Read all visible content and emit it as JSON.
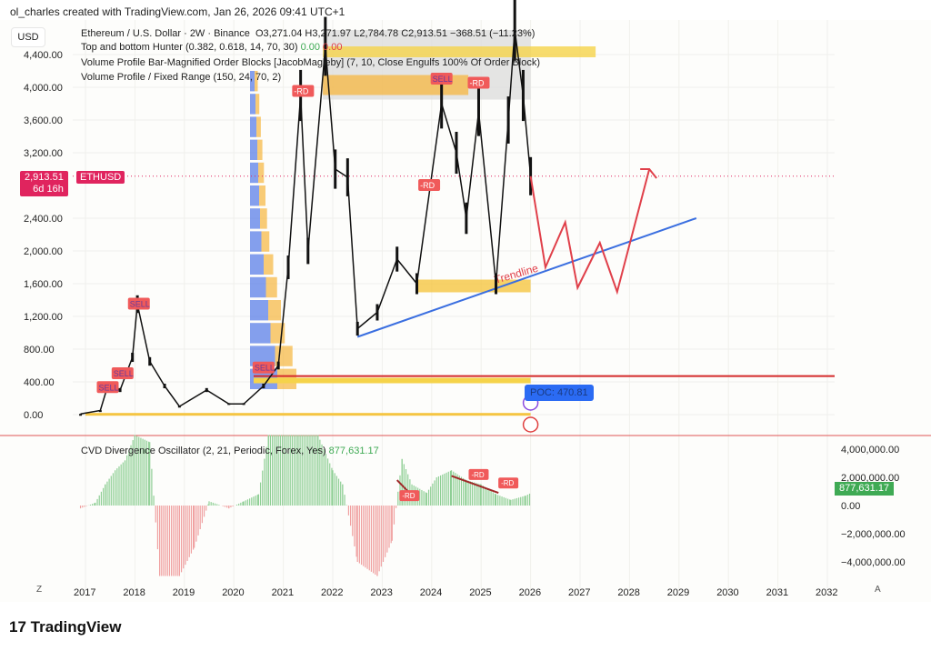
{
  "credit": "ol_charles created with TradingView.com, Jan 26, 2026 09:41 UTC+1",
  "currency": "USD",
  "legend": {
    "symbol": "Ethereum / U.S. Dollar · 2W · Binance",
    "ohlc": "O3,271.04  H3,271.97  L2,784.78  C2,913.51  −368.51 (−11.23%)",
    "ind1": "Top and bottom Hunter (0.382, 0.618, 14, 70, 30)",
    "ind1_v1": "0.00",
    "ind1_v2": "0.00",
    "ind2": "Volume Profile Bar-Magnified Order Blocks [JacobMagleby] (7, 10, Close Engulfs 100% Of Order Block)",
    "ind3": "Volume Profile / Fixed Range (150, 24, 70, 2)"
  },
  "price_tag": {
    "price": "2,913.51",
    "countdown": "6d 16h",
    "symbol": "ETHUSD"
  },
  "poc_label": "POC: 470.81",
  "trendline_label": "Trendline",
  "markers": {
    "sell": "SELL",
    "rd": "-RD"
  },
  "cvd": {
    "title": "CVD Divergence Oscillator (2, 21, Periodic, Forex, Yes)",
    "value": "877,631.17"
  },
  "bottom": {
    "left_btn": "Z",
    "right_btn": "A"
  },
  "logo": "TradingView",
  "colors": {
    "up": "#111111",
    "accent": "#e0245e",
    "trend": "#3b6fe0",
    "projection": "#e0404a",
    "cvd_pos": "#8fcf95",
    "cvd_neg": "#f0a0a0"
  },
  "chart_data": {
    "type": "line",
    "title": "Ethereum / U.S. Dollar · 2W · Binance",
    "x_ticks": [
      "2017",
      "2018",
      "2019",
      "2020",
      "2021",
      "2022",
      "2023",
      "2024",
      "2025",
      "2026",
      "2027",
      "2028",
      "2029",
      "2030",
      "2031",
      "2032"
    ],
    "y_ticks": [
      "0.00",
      "400.00",
      "800.00",
      "1,200.00",
      "1,600.00",
      "2,000.00",
      "2,400.00",
      "3,200.00",
      "3,600.00",
      "4,000.00",
      "4,400.00"
    ],
    "ylim": [
      -150,
      4800
    ],
    "price": [
      [
        2016.9,
        8
      ],
      [
        2017.3,
        50
      ],
      [
        2017.45,
        350
      ],
      [
        2017.7,
        300
      ],
      [
        2017.95,
        700
      ],
      [
        2018.05,
        1350
      ],
      [
        2018.3,
        650
      ],
      [
        2018.6,
        350
      ],
      [
        2018.9,
        100
      ],
      [
        2019.45,
        300
      ],
      [
        2019.9,
        130
      ],
      [
        2020.2,
        130
      ],
      [
        2020.6,
        350
      ],
      [
        2020.9,
        600
      ],
      [
        2021.1,
        1800
      ],
      [
        2021.35,
        3900
      ],
      [
        2021.5,
        2000
      ],
      [
        2021.85,
        4500
      ],
      [
        2022.05,
        3000
      ],
      [
        2022.3,
        2900
      ],
      [
        2022.5,
        1050
      ],
      [
        2022.9,
        1250
      ],
      [
        2023.3,
        1900
      ],
      [
        2023.7,
        1600
      ],
      [
        2024.2,
        3800
      ],
      [
        2024.5,
        3200
      ],
      [
        2024.7,
        2400
      ],
      [
        2024.95,
        3700
      ],
      [
        2025.3,
        1600
      ],
      [
        2025.55,
        3600
      ],
      [
        2025.68,
        4700
      ],
      [
        2025.85,
        3900
      ],
      [
        2026.0,
        2913.51
      ]
    ],
    "projection": [
      [
        2026.0,
        2913
      ],
      [
        2026.3,
        1800
      ],
      [
        2026.7,
        2350
      ],
      [
        2026.95,
        1550
      ],
      [
        2027.4,
        2100
      ],
      [
        2027.75,
        1500
      ],
      [
        2028.4,
        3000
      ]
    ],
    "trendline": [
      [
        2022.5,
        950
      ],
      [
        2029.35,
        2400
      ]
    ],
    "poc": 470.81,
    "current": 2913.51,
    "cvd_y_ticks": [
      "4,000,000.00",
      "2,000,000.00",
      "0.00",
      "−2,000,000.00",
      "−4,000,000.00"
    ],
    "cvd_values": [
      [
        2016.9,
        -200000
      ],
      [
        2017.2,
        200000
      ],
      [
        2017.4,
        1500000
      ],
      [
        2017.6,
        2500000
      ],
      [
        2017.8,
        3200000
      ],
      [
        2018.0,
        5000000
      ],
      [
        2018.3,
        4500000
      ],
      [
        2018.5,
        -5000000
      ],
      [
        2018.9,
        -5000000
      ],
      [
        2019.2,
        -3000000
      ],
      [
        2019.5,
        300000
      ],
      [
        2019.9,
        -200000
      ],
      [
        2020.2,
        300000
      ],
      [
        2020.5,
        800000
      ],
      [
        2020.7,
        5000000
      ],
      [
        2021.3,
        5000000
      ],
      [
        2021.7,
        5000000
      ],
      [
        2022.0,
        2500000
      ],
      [
        2022.2,
        1500000
      ],
      [
        2022.5,
        -4000000
      ],
      [
        2022.9,
        -5000000
      ],
      [
        2023.2,
        -2500000
      ],
      [
        2023.4,
        3300000
      ],
      [
        2023.6,
        1500000
      ],
      [
        2023.9,
        900000
      ],
      [
        2024.1,
        2000000
      ],
      [
        2024.4,
        2500000
      ],
      [
        2024.7,
        1800000
      ],
      [
        2025.0,
        1500000
      ],
      [
        2025.3,
        800000
      ],
      [
        2025.6,
        400000
      ],
      [
        2025.9,
        700000
      ],
      [
        2026.0,
        877631.17
      ]
    ]
  }
}
